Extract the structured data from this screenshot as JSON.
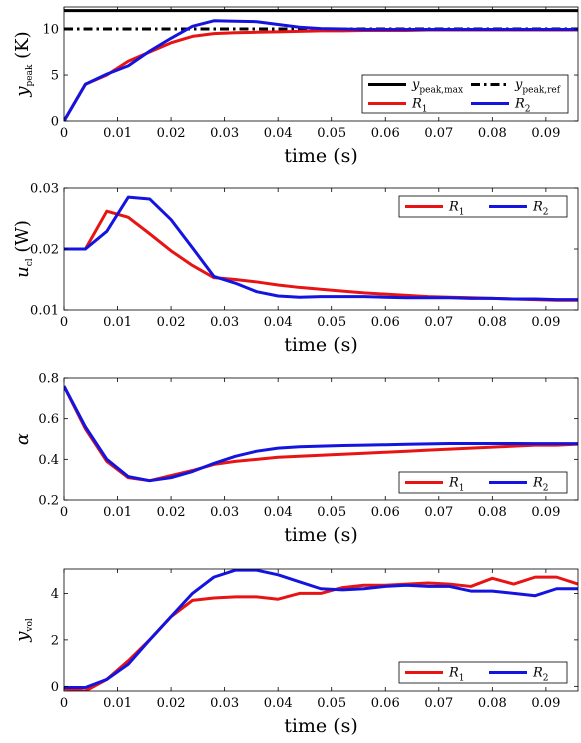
{
  "chart_data": [
    {
      "type": "line",
      "xlabel": "time (s)",
      "ylabel": "y_peak (K)",
      "ylabel_main": "y",
      "ylabel_sub": "peak",
      "ylabel_unit": "(K)",
      "xlim": [
        0,
        0.096
      ],
      "ylim": [
        0,
        12.4
      ],
      "xticks": [
        0,
        0.01,
        0.02,
        0.03,
        0.04,
        0.05,
        0.06,
        0.07,
        0.08,
        0.09
      ],
      "xtick_labels": [
        "0",
        "0.01",
        "0.02",
        "0.03",
        "0.04",
        "0.05",
        "0.06",
        "0.07",
        "0.08",
        "0.09"
      ],
      "yticks": [
        0,
        5,
        10
      ],
      "ytick_labels": [
        "0",
        "5",
        "10"
      ],
      "legend_position": "bottom-right",
      "series": [
        {
          "name": "y_peak,max",
          "name_main": "y",
          "name_sub": "peak,max",
          "color": "#000000",
          "dash": "solid",
          "x": [
            0,
            0.096
          ],
          "y": [
            12,
            12
          ]
        },
        {
          "name": "y_peak,ref",
          "name_main": "y",
          "name_sub": "peak,ref",
          "color": "#000000",
          "dash": "dashdot",
          "x": [
            0,
            0.096
          ],
          "y": [
            10,
            10
          ]
        },
        {
          "name": "R_1",
          "name_main": "R",
          "name_sub": "1",
          "color": "#e81414",
          "dash": "solid",
          "x": [
            0,
            0.004,
            0.008,
            0.012,
            0.016,
            0.02,
            0.024,
            0.028,
            0.032,
            0.036,
            0.04,
            0.044,
            0.048,
            0.052,
            0.056,
            0.06,
            0.064,
            0.068,
            0.072,
            0.076,
            0.08,
            0.084,
            0.088,
            0.092,
            0.096
          ],
          "y": [
            0,
            4.0,
            5.0,
            6.5,
            7.5,
            8.5,
            9.2,
            9.5,
            9.6,
            9.65,
            9.7,
            9.75,
            9.8,
            9.8,
            9.85,
            9.85,
            9.85,
            9.9,
            9.9,
            9.9,
            9.9,
            9.9,
            9.9,
            9.9,
            9.9
          ]
        },
        {
          "name": "R_2",
          "name_main": "R",
          "name_sub": "2",
          "color": "#1414e0",
          "dash": "solid",
          "x": [
            0,
            0.004,
            0.008,
            0.012,
            0.016,
            0.02,
            0.024,
            0.028,
            0.032,
            0.036,
            0.04,
            0.044,
            0.048,
            0.052,
            0.056,
            0.06,
            0.064,
            0.068,
            0.072,
            0.076,
            0.08,
            0.084,
            0.088,
            0.092,
            0.096
          ],
          "y": [
            0,
            4.0,
            5.1,
            6.0,
            7.6,
            9.0,
            10.3,
            10.9,
            10.85,
            10.8,
            10.5,
            10.2,
            10.05,
            10.0,
            9.95,
            9.95,
            9.95,
            9.95,
            9.95,
            9.95,
            9.95,
            9.95,
            9.95,
            9.95,
            9.95
          ]
        }
      ]
    },
    {
      "type": "line",
      "xlabel": "time (s)",
      "ylabel": "u_cl (W)",
      "ylabel_main": "u",
      "ylabel_sub": "cl",
      "ylabel_unit": "(W)",
      "xlim": [
        0,
        0.096
      ],
      "ylim": [
        0.01,
        0.03
      ],
      "xticks": [
        0,
        0.01,
        0.02,
        0.03,
        0.04,
        0.05,
        0.06,
        0.07,
        0.08,
        0.09
      ],
      "xtick_labels": [
        "0",
        "0.01",
        "0.02",
        "0.03",
        "0.04",
        "0.05",
        "0.06",
        "0.07",
        "0.08",
        "0.09"
      ],
      "yticks": [
        0.01,
        0.02,
        0.03
      ],
      "ytick_labels": [
        "0.01",
        "0.02",
        "0.03"
      ],
      "legend_position": "top-right",
      "series": [
        {
          "name": "R_1",
          "name_main": "R",
          "name_sub": "1",
          "color": "#e81414",
          "dash": "solid",
          "x": [
            0,
            0.004,
            0.008,
            0.012,
            0.016,
            0.02,
            0.024,
            0.028,
            0.032,
            0.036,
            0.04,
            0.044,
            0.048,
            0.052,
            0.056,
            0.06,
            0.064,
            0.068,
            0.072,
            0.076,
            0.08,
            0.084,
            0.088,
            0.092,
            0.096
          ],
          "y": [
            0.02,
            0.02,
            0.0262,
            0.0252,
            0.0225,
            0.0197,
            0.0173,
            0.0153,
            0.015,
            0.0146,
            0.0141,
            0.0137,
            0.0134,
            0.0131,
            0.0128,
            0.0126,
            0.0124,
            0.0122,
            0.0121,
            0.012,
            0.0119,
            0.0118,
            0.0117,
            0.0116,
            0.0116
          ]
        },
        {
          "name": "R_2",
          "name_main": "R",
          "name_sub": "2",
          "color": "#1414e0",
          "dash": "solid",
          "x": [
            0,
            0.004,
            0.008,
            0.012,
            0.016,
            0.02,
            0.024,
            0.028,
            0.032,
            0.036,
            0.04,
            0.044,
            0.048,
            0.052,
            0.056,
            0.06,
            0.064,
            0.068,
            0.072,
            0.076,
            0.08,
            0.084,
            0.088,
            0.092,
            0.096
          ],
          "y": [
            0.02,
            0.02,
            0.0229,
            0.0285,
            0.0282,
            0.0248,
            0.0202,
            0.0155,
            0.0144,
            0.013,
            0.0123,
            0.0121,
            0.0122,
            0.0122,
            0.0122,
            0.0121,
            0.012,
            0.012,
            0.012,
            0.0119,
            0.0119,
            0.0118,
            0.0118,
            0.0117,
            0.0117
          ]
        }
      ]
    },
    {
      "type": "line",
      "xlabel": "time (s)",
      "ylabel": "α",
      "ylabel_main": "α",
      "ylabel_sub": "",
      "ylabel_unit": "",
      "xlim": [
        0,
        0.096
      ],
      "ylim": [
        0.2,
        0.8
      ],
      "xticks": [
        0,
        0.01,
        0.02,
        0.03,
        0.04,
        0.05,
        0.06,
        0.07,
        0.08,
        0.09
      ],
      "xtick_labels": [
        "0",
        "0.01",
        "0.02",
        "0.03",
        "0.04",
        "0.05",
        "0.06",
        "0.07",
        "0.08",
        "0.09"
      ],
      "yticks": [
        0.2,
        0.4,
        0.6,
        0.8
      ],
      "ytick_labels": [
        "0.2",
        "0.4",
        "0.6",
        "0.8"
      ],
      "legend_position": "bottom-right",
      "series": [
        {
          "name": "R_1",
          "name_main": "R",
          "name_sub": "1",
          "color": "#e81414",
          "dash": "solid",
          "x": [
            0,
            0.004,
            0.008,
            0.012,
            0.016,
            0.02,
            0.024,
            0.028,
            0.032,
            0.036,
            0.04,
            0.044,
            0.048,
            0.052,
            0.056,
            0.06,
            0.064,
            0.068,
            0.072,
            0.076,
            0.08,
            0.084,
            0.088,
            0.092,
            0.096
          ],
          "y": [
            0.76,
            0.55,
            0.39,
            0.31,
            0.295,
            0.32,
            0.345,
            0.375,
            0.39,
            0.4,
            0.41,
            0.415,
            0.42,
            0.425,
            0.43,
            0.435,
            0.44,
            0.445,
            0.45,
            0.455,
            0.46,
            0.465,
            0.47,
            0.47,
            0.475
          ]
        },
        {
          "name": "R_2",
          "name_main": "R",
          "name_sub": "2",
          "color": "#1414e0",
          "dash": "solid",
          "x": [
            0,
            0.004,
            0.008,
            0.012,
            0.016,
            0.02,
            0.024,
            0.028,
            0.032,
            0.036,
            0.04,
            0.044,
            0.048,
            0.052,
            0.056,
            0.06,
            0.064,
            0.068,
            0.072,
            0.076,
            0.08,
            0.084,
            0.088,
            0.092,
            0.096
          ],
          "y": [
            0.76,
            0.56,
            0.4,
            0.315,
            0.295,
            0.31,
            0.34,
            0.38,
            0.415,
            0.44,
            0.455,
            0.462,
            0.465,
            0.468,
            0.47,
            0.472,
            0.474,
            0.476,
            0.478,
            0.478,
            0.478,
            0.478,
            0.477,
            0.477,
            0.477
          ]
        }
      ]
    },
    {
      "type": "line",
      "xlabel": "time (s)",
      "ylabel": "y_vol",
      "ylabel_main": "y",
      "ylabel_sub": "vol",
      "ylabel_unit": "",
      "xlim": [
        0,
        0.096
      ],
      "ylim": [
        -0.2,
        5.05
      ],
      "xticks": [
        0,
        0.01,
        0.02,
        0.03,
        0.04,
        0.05,
        0.06,
        0.07,
        0.08,
        0.09
      ],
      "xtick_labels": [
        "0",
        "0.01",
        "0.02",
        "0.03",
        "0.04",
        "0.05",
        "0.06",
        "0.07",
        "0.08",
        "0.09"
      ],
      "yticks": [
        0,
        2,
        4
      ],
      "ytick_labels": [
        "0",
        "2",
        "4"
      ],
      "legend_position": "bottom-right",
      "series": [
        {
          "name": "R_1",
          "name_main": "R",
          "name_sub": "1",
          "color": "#e81414",
          "dash": "solid",
          "x": [
            0,
            0.004,
            0.008,
            0.012,
            0.016,
            0.02,
            0.024,
            0.028,
            0.032,
            0.036,
            0.04,
            0.044,
            0.048,
            0.052,
            0.056,
            0.06,
            0.064,
            0.068,
            0.072,
            0.076,
            0.08,
            0.084,
            0.088,
            0.092,
            0.096
          ],
          "y": [
            -0.1,
            -0.2,
            0.3,
            1.1,
            2.0,
            3.0,
            3.7,
            3.8,
            3.85,
            3.85,
            3.75,
            4.0,
            4.0,
            4.25,
            4.35,
            4.35,
            4.4,
            4.45,
            4.4,
            4.3,
            4.65,
            4.4,
            4.7,
            4.7,
            4.4
          ]
        },
        {
          "name": "R_2",
          "name_main": "R",
          "name_sub": "2",
          "color": "#1414e0",
          "dash": "solid",
          "x": [
            0,
            0.004,
            0.008,
            0.012,
            0.016,
            0.02,
            0.024,
            0.028,
            0.032,
            0.036,
            0.04,
            0.044,
            0.048,
            0.052,
            0.056,
            0.06,
            0.064,
            0.068,
            0.072,
            0.076,
            0.08,
            0.084,
            0.088,
            0.092,
            0.096
          ],
          "y": [
            -0.05,
            -0.05,
            0.3,
            0.95,
            2.0,
            3.0,
            4.0,
            4.7,
            5.0,
            5.0,
            4.8,
            4.5,
            4.2,
            4.15,
            4.2,
            4.3,
            4.35,
            4.3,
            4.3,
            4.1,
            4.1,
            4.0,
            3.9,
            4.2,
            4.2
          ]
        }
      ]
    }
  ]
}
